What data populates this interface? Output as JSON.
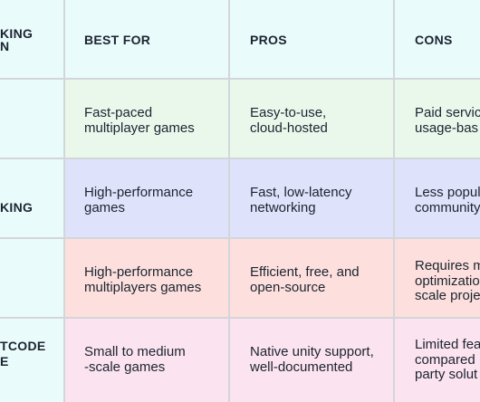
{
  "colors": {
    "header": "#e9fbfb",
    "row1": "#eaf8ec",
    "row2": "#dfe2fb",
    "row3": "#fde0de",
    "row4": "#fbe3ef",
    "grid": "#d3d6d9"
  },
  "header": {
    "solution_lines": [
      "KING",
      "N"
    ],
    "best_for": "BEST FOR",
    "pros": "PROS",
    "cons": "CONS"
  },
  "rows": [
    {
      "solution_lines": [],
      "best_for": [
        "Fast-paced",
        "multiplayer games"
      ],
      "pros": [
        "Easy-to-use,",
        "cloud-hosted"
      ],
      "cons": [
        "Paid servic",
        "usage-bas"
      ]
    },
    {
      "solution_lines": [
        "KING"
      ],
      "best_for": [
        "High-performance",
        "games"
      ],
      "pros": [
        "Fast, low-latency",
        "networking"
      ],
      "cons": [
        "Less popul",
        "community"
      ]
    },
    {
      "solution_lines": [],
      "best_for": [
        "High-performance",
        "multiplayers games"
      ],
      "pros": [
        "Efficient, free, and",
        "open-source"
      ],
      "cons": [
        "Requires m",
        "optimizatio",
        "scale proje"
      ]
    },
    {
      "solution_lines": [
        "TCODE",
        "E"
      ],
      "best_for": [
        "Small to medium",
        "-scale games"
      ],
      "pros": [
        "Native unity support,",
        "well-documented"
      ],
      "cons": [
        "Limited fea",
        "compared",
        "party solut"
      ]
    }
  ]
}
